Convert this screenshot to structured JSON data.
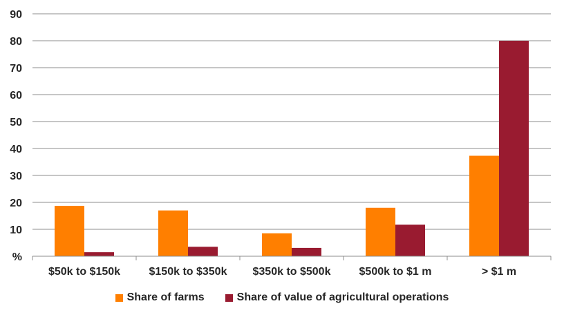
{
  "chart_data": {
    "type": "bar",
    "categories": [
      "$50k to $150k",
      "$150k to $350k",
      "$350k to $500k",
      "$500k to $1 m",
      "> $1 m"
    ],
    "series": [
      {
        "name": "Share of farms",
        "color": "#FF7F00",
        "values": [
          18.7,
          17.0,
          8.5,
          18.0,
          37.3
        ]
      },
      {
        "name": "Share of value of agricultural operations",
        "color": "#991B30",
        "values": [
          1.5,
          3.5,
          3.1,
          11.7,
          80.0
        ]
      }
    ],
    "ylim": [
      0,
      90
    ],
    "yticks": [
      "%",
      "10",
      "20",
      "30",
      "40",
      "50",
      "60",
      "70",
      "80",
      "90"
    ],
    "grid": true,
    "legend_position": "bottom"
  }
}
